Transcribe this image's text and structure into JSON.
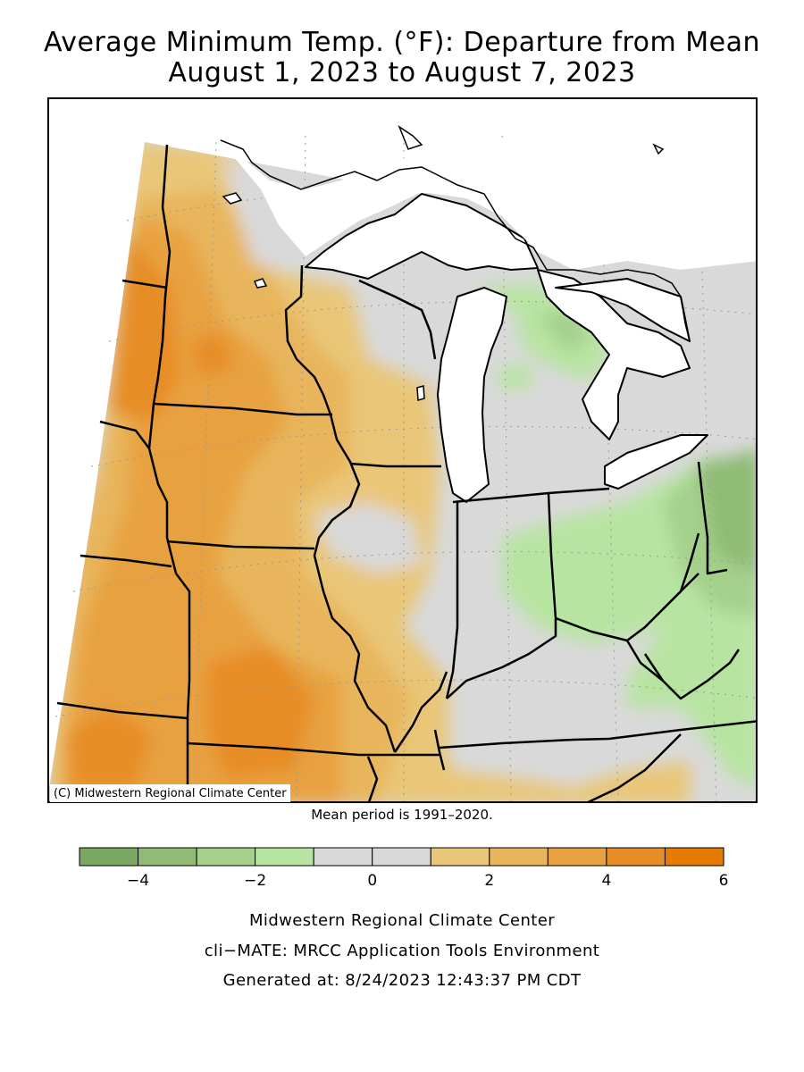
{
  "title": {
    "line1": "Average Minimum Temp. (°F): Departure from Mean",
    "line2": "August 1, 2023 to August 7, 2023"
  },
  "map": {
    "region": "Midwest United States",
    "copyright": "(C) Midwestern Regional Climate Center",
    "colors": {
      "land_neutral": "#d9d9d9",
      "water": "#ffffff",
      "border": "#000000",
      "gridline": "#9a9a9a"
    }
  },
  "mean_note": "Mean period is 1991–2020.",
  "legend": {
    "bins": [
      {
        "min": -5,
        "max": -4,
        "color": "#7aa862"
      },
      {
        "min": -4,
        "max": -3,
        "color": "#8fbb74"
      },
      {
        "min": -3,
        "max": -2,
        "color": "#a4d08c"
      },
      {
        "min": -2,
        "max": -1,
        "color": "#b8e4a2"
      },
      {
        "min": -1,
        "max": 0,
        "color": "#d9d9d9"
      },
      {
        "min": 0,
        "max": 1,
        "color": "#d9d9d9"
      },
      {
        "min": 1,
        "max": 2,
        "color": "#e9c678"
      },
      {
        "min": 2,
        "max": 3,
        "color": "#e8b55c"
      },
      {
        "min": 3,
        "max": 4,
        "color": "#e8a140"
      },
      {
        "min": 4,
        "max": 5,
        "color": "#e78d26"
      },
      {
        "min": 5,
        "max": 6,
        "color": "#e77a00"
      }
    ],
    "tick_labels": [
      {
        "value": -4,
        "label": "−4"
      },
      {
        "value": -2,
        "label": "−2"
      },
      {
        "value": 0,
        "label": "0"
      },
      {
        "value": 2,
        "label": "2"
      },
      {
        "value": 4,
        "label": "4"
      },
      {
        "value": 6,
        "label": "6"
      }
    ]
  },
  "footer": {
    "line1": "Midwestern Regional Climate Center",
    "line2": "cli−MATE: MRCC Application Tools Environment",
    "line3": "Generated at: 8/24/2023 12:43:37 PM CDT"
  }
}
